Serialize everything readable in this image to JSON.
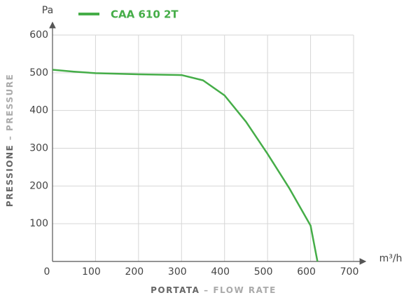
{
  "chart_data": {
    "type": "line",
    "series": [
      {
        "name": "CAA 610 2T",
        "color": "#45ad48",
        "x": [
          0,
          50,
          100,
          200,
          300,
          350,
          400,
          450,
          500,
          550,
          600,
          616
        ],
        "values": [
          508,
          503,
          499,
          496,
          494,
          480,
          440,
          370,
          285,
          195,
          95,
          0
        ]
      }
    ],
    "xlim": [
      0,
      700
    ],
    "xticks": [
      0,
      100,
      200,
      300,
      400,
      500,
      600,
      700
    ],
    "ylim": [
      0,
      600
    ],
    "yticks": [
      100,
      200,
      300,
      400,
      500,
      600
    ],
    "x_unit": "m³/h",
    "y_unit": "Pa",
    "xlabel": {
      "main": "PORTATA",
      "sub": "– FLOW RATE"
    },
    "ylabel": {
      "main": "PRESSIONE",
      "sub": "– PRESSURE"
    },
    "grid": true
  }
}
